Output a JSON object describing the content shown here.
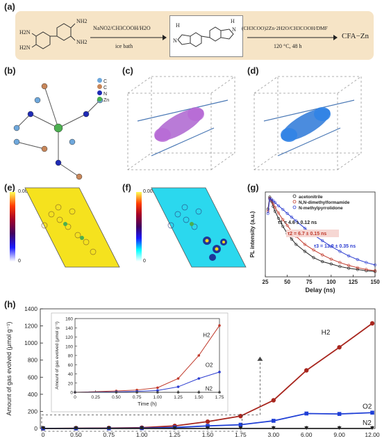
{
  "panels": {
    "a": "(a)",
    "b": "(b)",
    "c": "(c)",
    "d": "(d)",
    "e": "(e)",
    "f": "(f)",
    "g": "(g)",
    "h": "(h)"
  },
  "scheme": {
    "reagent1": "NaNO2/CH3COOH/H2O",
    "condition1": "ice bath",
    "reagent2": "(CH3COO)2Zn·2H2O/CH3COOH/DMF",
    "condition2": "120 °C, 48 h",
    "product": "CFA−Zn",
    "nh2": "NH2",
    "h2n": "H2N",
    "nh": "H",
    "n": "N"
  },
  "atom_legend": [
    {
      "label": "C",
      "color": "#6fa8dc"
    },
    {
      "label": "C",
      "color": "#c8875a"
    },
    {
      "label": "N",
      "color": "#1f2bb5"
    },
    {
      "label": "Zn",
      "color": "#4caf50"
    }
  ],
  "colorbar_e": {
    "max": "0.0015",
    "min": "0"
  },
  "colorbar_f": {
    "max": "0.0015",
    "min": "0"
  },
  "chart_data": [
    {
      "type": "line",
      "panel": "g",
      "xlabel": "Delay (ns)",
      "ylabel": "PL intensity (a.u.)",
      "xlim": [
        25,
        150
      ],
      "xticks": [
        "25",
        "50",
        "75",
        "100",
        "125",
        "150"
      ],
      "log_y": true,
      "series": [
        {
          "name": "acetonitrile",
          "color": "#222222",
          "tau": "τ1 = 4.6 ± 0.12 ns",
          "x": [
            28,
            30,
            32,
            34,
            36,
            40,
            45,
            50,
            55,
            60,
            70,
            80,
            90,
            100,
            110,
            120,
            130,
            140,
            150
          ],
          "y": [
            0.55,
            0.95,
            0.78,
            0.62,
            0.5,
            0.36,
            0.25,
            0.18,
            0.14,
            0.11,
            0.08,
            0.06,
            0.05,
            0.045,
            0.04,
            0.037,
            0.035,
            0.033,
            0.032
          ]
        },
        {
          "name": "N,N-dimethylformamide",
          "color": "#c0392b",
          "tau": "τ2 = 6.7 ± 0.15 ns",
          "x": [
            28,
            30,
            32,
            34,
            36,
            40,
            45,
            50,
            55,
            60,
            70,
            80,
            90,
            100,
            110,
            120,
            130,
            140,
            150
          ],
          "y": [
            0.5,
            0.9,
            0.82,
            0.7,
            0.6,
            0.46,
            0.34,
            0.26,
            0.2,
            0.16,
            0.11,
            0.085,
            0.068,
            0.056,
            0.048,
            0.042,
            0.038,
            0.035,
            0.033
          ]
        },
        {
          "name": "N-methylpyrrolidone",
          "color": "#2b3cd0",
          "tau": "τ3 = 13.0 ± 0.35 ns",
          "x": [
            28,
            30,
            32,
            34,
            36,
            40,
            45,
            50,
            55,
            60,
            70,
            80,
            90,
            100,
            110,
            120,
            130,
            140,
            150
          ],
          "y": [
            0.45,
            0.88,
            0.86,
            0.8,
            0.74,
            0.64,
            0.54,
            0.45,
            0.38,
            0.32,
            0.23,
            0.17,
            0.13,
            0.1,
            0.08,
            0.065,
            0.055,
            0.048,
            0.043
          ]
        }
      ]
    },
    {
      "type": "line",
      "panel": "h",
      "xlabel": "Time (h)",
      "ylabel": "Amount of gas evolved (μmol g⁻¹)",
      "categories": [
        "0",
        "0.50",
        "0.75",
        "1.00",
        "1.25",
        "1.50",
        "1.75",
        "3.00",
        "6.00",
        "9.00",
        "12.00"
      ],
      "ylim": [
        0,
        1400
      ],
      "yticks": [
        "0",
        "200",
        "400",
        "600",
        "800",
        "1000",
        "1200",
        "1400"
      ],
      "series": [
        {
          "name": "H2",
          "color": "#a8261e",
          "marker": "circle",
          "values": [
            0,
            3,
            5,
            10,
            30,
            80,
            145,
            330,
            680,
            950,
            1230
          ]
        },
        {
          "name": "O2",
          "color": "#1f3fd6",
          "marker": "square",
          "values": [
            0,
            1,
            2,
            4,
            12,
            30,
            44,
            90,
            175,
            170,
            185
          ]
        },
        {
          "name": "N2",
          "color": "#222222",
          "marker": "triangle-down",
          "values": [
            0,
            0,
            0,
            0,
            0,
            0,
            0,
            0,
            0,
            0,
            0
          ]
        }
      ],
      "series_labels": {
        "H2": "H2",
        "O2": "O2",
        "N2": "N2"
      }
    },
    {
      "type": "line",
      "panel": "h-inset",
      "xlabel": "Time (h)",
      "ylabel": "Amount of gas evolved (μmol g⁻¹)",
      "x": [
        0,
        0.5,
        0.75,
        1.0,
        1.25,
        1.5,
        1.75
      ],
      "xticks": [
        "0",
        "0.25",
        "0.50",
        "0.75",
        "1.00",
        "1.25",
        "1.50",
        "1.75"
      ],
      "ylim": [
        0,
        160
      ],
      "yticks": [
        "0",
        "20",
        "40",
        "60",
        "80",
        "100",
        "120",
        "140",
        "160"
      ],
      "series": [
        {
          "name": "H2",
          "color": "#c0392b",
          "values": [
            0,
            3,
            5,
            10,
            30,
            80,
            145
          ]
        },
        {
          "name": "O2",
          "color": "#2b3cd0",
          "values": [
            0,
            1,
            2,
            4,
            12,
            30,
            44
          ]
        },
        {
          "name": "N2",
          "color": "#444444",
          "values": [
            0,
            0,
            0,
            0,
            0,
            0,
            0
          ]
        }
      ]
    }
  ]
}
